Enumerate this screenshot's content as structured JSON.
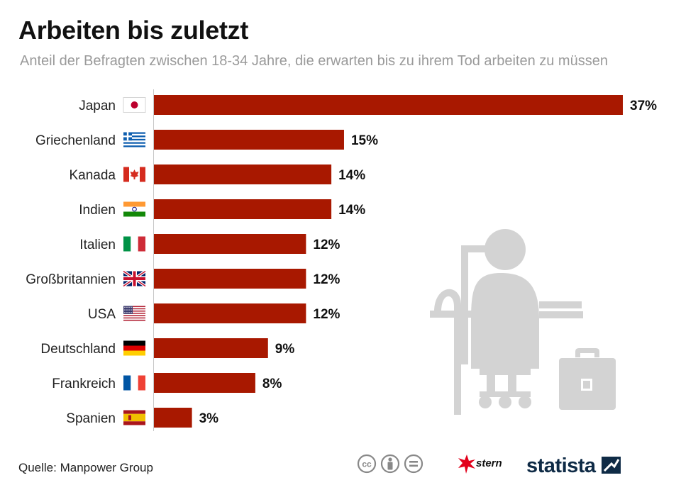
{
  "header": {
    "title": "Arbeiten bis zuletzt",
    "subtitle": "Anteil der Befragten zwischen 18-34 Jahre, die erwarten bis zu ihrem Tod arbeiten zu müssen"
  },
  "chart_data": {
    "type": "bar",
    "orientation": "horizontal",
    "categories": [
      "Japan",
      "Griechenland",
      "Kanada",
      "Indien",
      "Italien",
      "Großbritannien",
      "USA",
      "Deutschland",
      "Frankreich",
      "Spanien"
    ],
    "values": [
      37,
      15,
      14,
      14,
      12,
      12,
      12,
      9,
      8,
      3
    ],
    "value_labels": [
      "37%",
      "15%",
      "14%",
      "14%",
      "12%",
      "12%",
      "12%",
      "9%",
      "8%",
      "3%"
    ],
    "unit": "%",
    "xlim": [
      0,
      37
    ],
    "grid": false,
    "legend": "none",
    "bar_color": "#a81800"
  },
  "footer": {
    "source": "Quelle: Manpower Group",
    "brand_stern": "stern",
    "brand_statista": "statista"
  },
  "icons": [
    "japan-flag-icon",
    "greece-flag-icon",
    "canada-flag-icon",
    "india-flag-icon",
    "italy-flag-icon",
    "uk-flag-icon",
    "usa-flag-icon",
    "germany-flag-icon",
    "france-flag-icon",
    "spain-flag-icon",
    "elderly-worker-illustration-icon",
    "briefcase-icon",
    "cc-icon",
    "by-icon",
    "nd-icon",
    "stern-star-icon",
    "statista-logo-icon"
  ]
}
